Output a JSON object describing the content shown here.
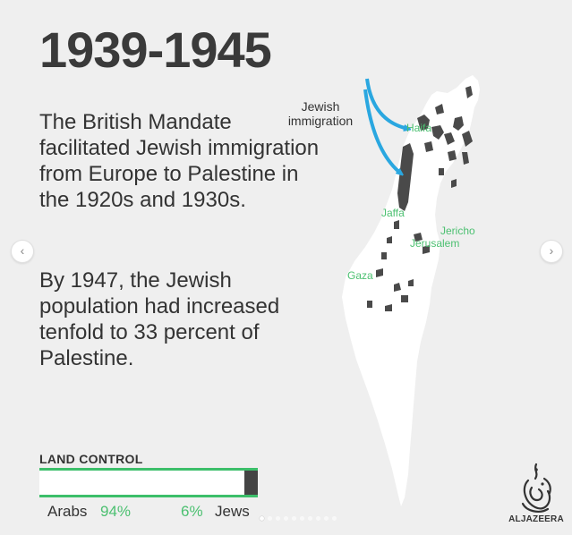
{
  "title": "1939-1945",
  "paragraph1": "The British Mandate facilitated Jewish immigration from Europe to Palestine in the 1920s and 1930s.",
  "paragraph2": "By 1947, the Jewish population had increased tenfold to 33 percent of Palestine.",
  "map": {
    "immigration_label_line1": "Jewish",
    "immigration_label_line2": "immigration",
    "places": [
      "Haifa",
      "Jaffa",
      "Jericho",
      "Jerusalem",
      "Gaza"
    ],
    "colors": {
      "arab_land": "#ffffff",
      "jewish_land": "#4a4a4a",
      "arrow": "#2aa7e0",
      "place_label": "#4cc071"
    }
  },
  "land_control": {
    "title": "LAND CONTROL",
    "arab_label": "Arabs",
    "arab_pct": "94%",
    "arab_value": 94,
    "jew_label": "Jews",
    "jew_pct": "6%",
    "jew_value": 6,
    "accent": "#3cbf6a"
  },
  "nav": {
    "prev_icon": "chevron-left-icon",
    "next_icon": "chevron-right-icon",
    "prev_glyph": "‹",
    "next_glyph": "›",
    "slide_count": 10,
    "active_slide": 1
  },
  "logo_text": "ALJAZEERA"
}
